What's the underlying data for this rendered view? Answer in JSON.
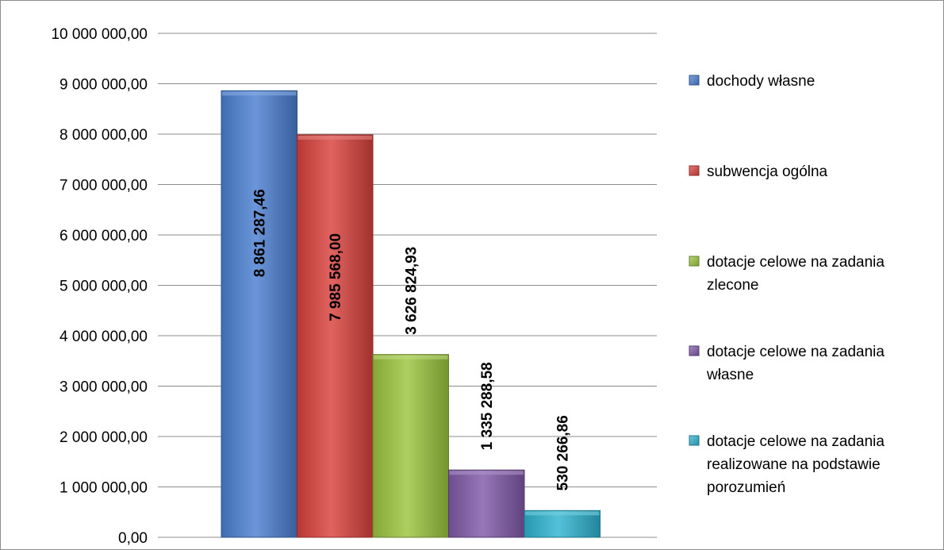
{
  "chart_data": {
    "type": "bar",
    "title": "",
    "xlabel": "",
    "ylabel": "",
    "ylim": [
      0,
      10000000
    ],
    "ytick_step": 1000000,
    "yticks": [
      "0,00",
      "1 000 000,00",
      "2 000 000,00",
      "3 000 000,00",
      "4 000 000,00",
      "5 000 000,00",
      "6 000 000,00",
      "7 000 000,00",
      "8 000 000,00",
      "9 000 000,00",
      "10 000 000,00"
    ],
    "grid": true,
    "legend_position": "right",
    "series": [
      {
        "name": "dochody własne",
        "value": 8861287.46,
        "label": "8 861 287,46",
        "color": "#4a7fd1",
        "legend_lines": [
          "dochody własne"
        ]
      },
      {
        "name": "subwencja ogólna",
        "value": 7985568.0,
        "label": "7 985 568,00",
        "color": "#d9413c",
        "legend_lines": [
          "subwencja ogólna"
        ]
      },
      {
        "name": "dotacje celowe na zadania zlecone",
        "value": 3626824.93,
        "label": "3 626 824,93",
        "color": "#9bc53d",
        "legend_lines": [
          "dotacje celowe na zadania",
          "zlecone"
        ]
      },
      {
        "name": "dotacje celowe na zadania własne",
        "value": 1335288.58,
        "label": "1 335 288,58",
        "color": "#8059a8",
        "legend_lines": [
          "dotacje celowe na zadania",
          "własne"
        ]
      },
      {
        "name": "dotacje celowe na zadania realizowane na podstawie porozumień",
        "value": 530266.86,
        "label": "530 266,86",
        "color": "#2eb3cf",
        "legend_lines": [
          "dotacje celowe na zadania",
          "realizowane na podstawie",
          "porozumień"
        ]
      }
    ]
  }
}
